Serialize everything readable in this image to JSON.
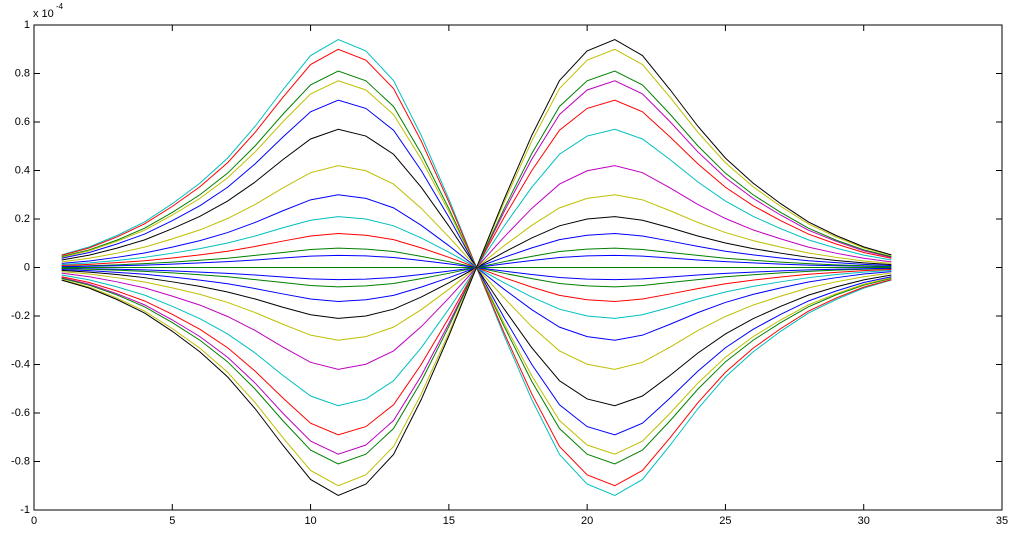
{
  "chart_data": {
    "type": "line",
    "y_multiplier": "x 10",
    "y_multiplier_exponent": "-4",
    "xlim": [
      0,
      35
    ],
    "xticks": [
      0,
      5,
      10,
      15,
      20,
      25,
      30,
      35
    ],
    "ylim": [
      -1,
      1
    ],
    "yticks": [
      -1,
      -0.8,
      -0.6,
      -0.4,
      -0.2,
      0,
      0.2,
      0.4,
      0.6,
      0.8,
      1
    ],
    "grid": false,
    "x": [
      1,
      2,
      3,
      4,
      5,
      6,
      7,
      8,
      9,
      10,
      11,
      12,
      13,
      14,
      15,
      16,
      17,
      18,
      19,
      20,
      21,
      22,
      23,
      24,
      25,
      26,
      27,
      28,
      29,
      30,
      31
    ],
    "series": [
      {
        "color": "#00bfbf",
        "values": [
          0.052,
          0.085,
          0.132,
          0.188,
          0.263,
          0.348,
          0.451,
          0.583,
          0.733,
          0.874,
          0.94,
          0.893,
          0.771,
          0.545,
          0.282,
          0,
          -0.282,
          -0.545,
          -0.771,
          -0.893,
          -0.94,
          -0.874,
          -0.733,
          -0.583,
          -0.451,
          -0.348,
          -0.263,
          -0.188,
          -0.132,
          -0.085,
          -0.052
        ]
      },
      {
        "color": "#ff0000",
        "values": [
          0.05,
          0.081,
          0.126,
          0.18,
          0.252,
          0.333,
          0.432,
          0.558,
          0.702,
          0.837,
          0.9,
          0.855,
          0.738,
          0.522,
          0.27,
          0,
          -0.27,
          -0.522,
          -0.738,
          -0.855,
          -0.9,
          -0.837,
          -0.702,
          -0.558,
          -0.432,
          -0.333,
          -0.252,
          -0.18,
          -0.126,
          -0.081,
          -0.05
        ]
      },
      {
        "color": "#008000",
        "values": [
          0.045,
          0.073,
          0.113,
          0.162,
          0.227,
          0.3,
          0.389,
          0.502,
          0.632,
          0.753,
          0.81,
          0.77,
          0.664,
          0.47,
          0.243,
          0,
          -0.243,
          -0.47,
          -0.664,
          -0.77,
          -0.81,
          -0.753,
          -0.632,
          -0.502,
          -0.389,
          -0.3,
          -0.227,
          -0.162,
          -0.113,
          -0.073,
          -0.045
        ]
      },
      {
        "color": "#bfbf00",
        "values": [
          0.042,
          0.069,
          0.108,
          0.154,
          0.216,
          0.285,
          0.37,
          0.477,
          0.601,
          0.716,
          0.77,
          0.732,
          0.631,
          0.447,
          0.231,
          0,
          -0.231,
          -0.447,
          -0.631,
          -0.732,
          -0.77,
          -0.716,
          -0.601,
          -0.477,
          -0.37,
          -0.285,
          -0.216,
          -0.154,
          -0.108,
          -0.069,
          -0.042
        ]
      },
      {
        "color": "#0000ff",
        "values": [
          0.038,
          0.062,
          0.097,
          0.138,
          0.193,
          0.255,
          0.331,
          0.428,
          0.538,
          0.642,
          0.69,
          0.656,
          0.566,
          0.4,
          0.207,
          0,
          -0.207,
          -0.4,
          -0.566,
          -0.656,
          -0.69,
          -0.642,
          -0.538,
          -0.428,
          -0.331,
          -0.255,
          -0.193,
          -0.138,
          -0.097,
          -0.062,
          -0.038
        ]
      },
      {
        "color": "#000000",
        "values": [
          0.031,
          0.051,
          0.08,
          0.114,
          0.16,
          0.211,
          0.274,
          0.353,
          0.445,
          0.53,
          0.57,
          0.542,
          0.467,
          0.331,
          0.171,
          0,
          -0.171,
          -0.331,
          -0.467,
          -0.542,
          -0.57,
          -0.53,
          -0.445,
          -0.353,
          -0.274,
          -0.211,
          -0.16,
          -0.114,
          -0.08,
          -0.051,
          -0.031
        ]
      },
      {
        "color": "#bfbf00",
        "values": [
          0.023,
          0.038,
          0.059,
          0.084,
          0.118,
          0.155,
          0.202,
          0.26,
          0.328,
          0.391,
          0.42,
          0.399,
          0.344,
          0.244,
          0.126,
          0,
          -0.126,
          -0.244,
          -0.344,
          -0.399,
          -0.42,
          -0.391,
          -0.328,
          -0.26,
          -0.202,
          -0.155,
          -0.118,
          -0.084,
          -0.059,
          -0.038,
          -0.023
        ]
      },
      {
        "color": "#0000ff",
        "values": [
          0.017,
          0.027,
          0.042,
          0.06,
          0.084,
          0.111,
          0.144,
          0.186,
          0.234,
          0.279,
          0.3,
          0.285,
          0.246,
          0.174,
          0.09,
          0,
          -0.09,
          -0.174,
          -0.246,
          -0.285,
          -0.3,
          -0.279,
          -0.234,
          -0.186,
          -0.144,
          -0.111,
          -0.084,
          -0.06,
          -0.042,
          -0.027,
          -0.017
        ]
      },
      {
        "color": "#00bfbf",
        "values": [
          0.012,
          0.019,
          0.029,
          0.042,
          0.059,
          0.078,
          0.101,
          0.13,
          0.164,
          0.195,
          0.21,
          0.2,
          0.172,
          0.122,
          0.063,
          0,
          -0.063,
          -0.122,
          -0.172,
          -0.2,
          -0.21,
          -0.195,
          -0.164,
          -0.13,
          -0.101,
          -0.078,
          -0.059,
          -0.042,
          -0.029,
          -0.019,
          -0.012
        ]
      },
      {
        "color": "#ff0000",
        "values": [
          0.008,
          0.013,
          0.02,
          0.028,
          0.039,
          0.052,
          0.067,
          0.087,
          0.109,
          0.13,
          0.14,
          0.133,
          0.115,
          0.081,
          0.042,
          0,
          -0.042,
          -0.081,
          -0.115,
          -0.133,
          -0.14,
          -0.13,
          -0.109,
          -0.087,
          -0.067,
          -0.052,
          -0.039,
          -0.028,
          -0.02,
          -0.013,
          -0.008
        ]
      },
      {
        "color": "#008000",
        "values": [
          0.004,
          0.007,
          0.011,
          0.016,
          0.022,
          0.03,
          0.038,
          0.05,
          0.062,
          0.074,
          0.08,
          0.076,
          0.066,
          0.046,
          0.024,
          0,
          -0.024,
          -0.046,
          -0.066,
          -0.076,
          -0.08,
          -0.074,
          -0.062,
          -0.05,
          -0.038,
          -0.03,
          -0.022,
          -0.016,
          -0.011,
          -0.007,
          -0.004
        ]
      },
      {
        "color": "#0000ff",
        "values": [
          0.003,
          0.005,
          0.007,
          0.01,
          0.014,
          0.019,
          0.024,
          0.031,
          0.039,
          0.047,
          0.05,
          0.048,
          0.041,
          0.029,
          0.015,
          0,
          -0.015,
          -0.029,
          -0.041,
          -0.048,
          -0.05,
          -0.047,
          -0.039,
          -0.031,
          -0.024,
          -0.019,
          -0.014,
          -0.01,
          -0.007,
          -0.005,
          -0.003
        ]
      },
      {
        "color": "#008000",
        "values": [
          0,
          0,
          0,
          0,
          0,
          0,
          0,
          0,
          0,
          0,
          0,
          0,
          0,
          0,
          0,
          0,
          0,
          0,
          0,
          0,
          0,
          0,
          0,
          0,
          0,
          0,
          0,
          0,
          0,
          0,
          0
        ]
      },
      {
        "color": "#0000ff",
        "values": [
          -0.003,
          -0.005,
          -0.007,
          -0.01,
          -0.014,
          -0.019,
          -0.024,
          -0.031,
          -0.039,
          -0.047,
          -0.05,
          -0.048,
          -0.041,
          -0.029,
          -0.015,
          0,
          0.015,
          0.029,
          0.041,
          0.048,
          0.05,
          0.047,
          0.039,
          0.031,
          0.024,
          0.019,
          0.014,
          0.01,
          0.007,
          0.005,
          0.003
        ]
      },
      {
        "color": "#008000",
        "values": [
          -0.004,
          -0.007,
          -0.011,
          -0.016,
          -0.022,
          -0.03,
          -0.038,
          -0.05,
          -0.062,
          -0.074,
          -0.08,
          -0.076,
          -0.066,
          -0.046,
          -0.024,
          0,
          0.024,
          0.046,
          0.066,
          0.076,
          0.08,
          0.074,
          0.062,
          0.05,
          0.038,
          0.03,
          0.022,
          0.016,
          0.011,
          0.007,
          0.004
        ]
      },
      {
        "color": "#0000ff",
        "values": [
          -0.008,
          -0.013,
          -0.02,
          -0.028,
          -0.039,
          -0.052,
          -0.067,
          -0.087,
          -0.109,
          -0.13,
          -0.14,
          -0.133,
          -0.115,
          -0.081,
          -0.042,
          0,
          0.042,
          0.081,
          0.115,
          0.133,
          0.14,
          0.13,
          0.109,
          0.087,
          0.067,
          0.052,
          0.039,
          0.028,
          0.02,
          0.013,
          0.008
        ]
      },
      {
        "color": "#000000",
        "values": [
          -0.012,
          -0.019,
          -0.029,
          -0.042,
          -0.059,
          -0.078,
          -0.101,
          -0.13,
          -0.164,
          -0.195,
          -0.21,
          -0.2,
          -0.172,
          -0.122,
          -0.063,
          0,
          0.063,
          0.122,
          0.172,
          0.2,
          0.21,
          0.195,
          0.164,
          0.13,
          0.101,
          0.078,
          0.059,
          0.042,
          0.029,
          0.019,
          0.012
        ]
      },
      {
        "color": "#bfbf00",
        "values": [
          -0.017,
          -0.027,
          -0.042,
          -0.06,
          -0.084,
          -0.111,
          -0.144,
          -0.186,
          -0.234,
          -0.279,
          -0.3,
          -0.285,
          -0.246,
          -0.174,
          -0.09,
          0,
          0.09,
          0.174,
          0.246,
          0.285,
          0.3,
          0.279,
          0.234,
          0.186,
          0.144,
          0.111,
          0.084,
          0.06,
          0.042,
          0.027,
          0.017
        ]
      },
      {
        "color": "#bf00bf",
        "values": [
          -0.023,
          -0.038,
          -0.059,
          -0.084,
          -0.118,
          -0.155,
          -0.202,
          -0.26,
          -0.328,
          -0.391,
          -0.42,
          -0.399,
          -0.344,
          -0.244,
          -0.126,
          0,
          0.126,
          0.244,
          0.344,
          0.399,
          0.42,
          0.391,
          0.328,
          0.26,
          0.202,
          0.155,
          0.118,
          0.084,
          0.059,
          0.038,
          0.023
        ]
      },
      {
        "color": "#00bfbf",
        "values": [
          -0.031,
          -0.051,
          -0.08,
          -0.114,
          -0.16,
          -0.211,
          -0.274,
          -0.353,
          -0.445,
          -0.53,
          -0.57,
          -0.542,
          -0.467,
          -0.331,
          -0.171,
          0,
          0.171,
          0.331,
          0.467,
          0.542,
          0.57,
          0.53,
          0.445,
          0.353,
          0.274,
          0.211,
          0.16,
          0.114,
          0.08,
          0.051,
          0.031
        ]
      },
      {
        "color": "#ff0000",
        "values": [
          -0.038,
          -0.062,
          -0.097,
          -0.138,
          -0.193,
          -0.255,
          -0.331,
          -0.428,
          -0.538,
          -0.642,
          -0.69,
          -0.656,
          -0.566,
          -0.4,
          -0.207,
          0,
          0.207,
          0.4,
          0.566,
          0.656,
          0.69,
          0.642,
          0.538,
          0.428,
          0.331,
          0.255,
          0.193,
          0.138,
          0.097,
          0.062,
          0.038
        ]
      },
      {
        "color": "#bf00bf",
        "values": [
          -0.042,
          -0.069,
          -0.108,
          -0.154,
          -0.216,
          -0.285,
          -0.37,
          -0.477,
          -0.601,
          -0.716,
          -0.77,
          -0.732,
          -0.631,
          -0.447,
          -0.231,
          0,
          0.231,
          0.447,
          0.631,
          0.732,
          0.77,
          0.716,
          0.601,
          0.477,
          0.37,
          0.285,
          0.216,
          0.154,
          0.108,
          0.069,
          0.042
        ]
      },
      {
        "color": "#008000",
        "values": [
          -0.045,
          -0.073,
          -0.113,
          -0.162,
          -0.227,
          -0.3,
          -0.389,
          -0.502,
          -0.632,
          -0.753,
          -0.81,
          -0.77,
          -0.664,
          -0.47,
          -0.243,
          0,
          0.243,
          0.47,
          0.664,
          0.77,
          0.81,
          0.753,
          0.632,
          0.502,
          0.389,
          0.3,
          0.227,
          0.162,
          0.113,
          0.073,
          0.045
        ]
      },
      {
        "color": "#bfbf00",
        "values": [
          -0.05,
          -0.081,
          -0.126,
          -0.18,
          -0.252,
          -0.333,
          -0.432,
          -0.558,
          -0.702,
          -0.837,
          -0.9,
          -0.855,
          -0.738,
          -0.522,
          -0.27,
          0,
          0.27,
          0.522,
          0.738,
          0.855,
          0.9,
          0.837,
          0.702,
          0.558,
          0.432,
          0.333,
          0.252,
          0.18,
          0.126,
          0.081,
          0.05
        ]
      },
      {
        "color": "#000000",
        "values": [
          -0.052,
          -0.085,
          -0.132,
          -0.188,
          -0.263,
          -0.348,
          -0.451,
          -0.583,
          -0.733,
          -0.874,
          -0.94,
          -0.893,
          -0.771,
          -0.545,
          -0.282,
          0,
          0.282,
          0.545,
          0.771,
          0.893,
          0.94,
          0.874,
          0.733,
          0.583,
          0.451,
          0.348,
          0.263,
          0.188,
          0.132,
          0.085,
          0.052
        ]
      }
    ]
  }
}
